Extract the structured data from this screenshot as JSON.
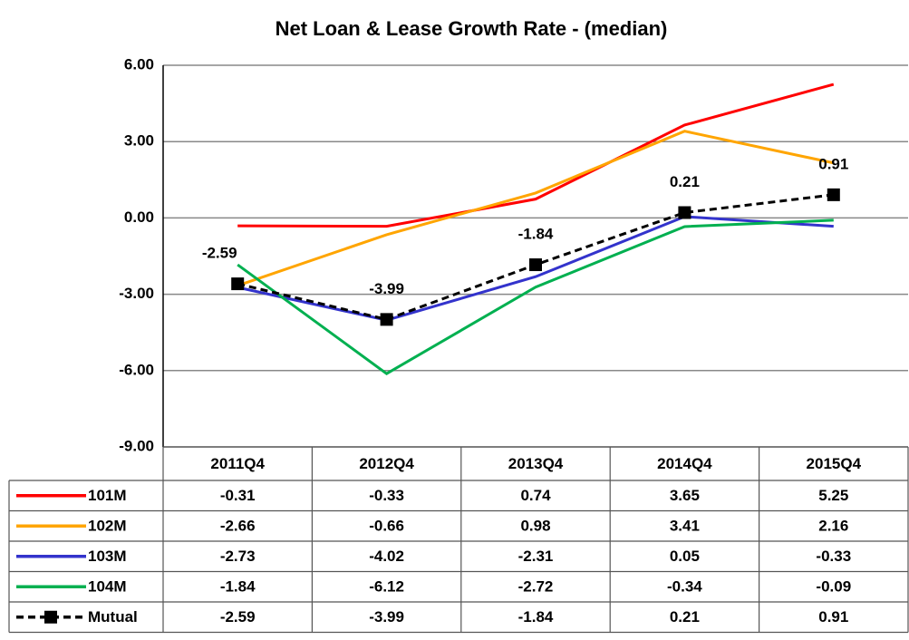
{
  "chart_data": {
    "type": "line",
    "title": "Net Loan & Lease Growth Rate - (median)",
    "categories": [
      "2011Q4",
      "2012Q4",
      "2013Q4",
      "2014Q4",
      "2015Q4"
    ],
    "series": [
      {
        "name": "101M",
        "color": "#ff0000",
        "values": [
          -0.31,
          -0.33,
          0.74,
          3.65,
          5.25
        ]
      },
      {
        "name": "102M",
        "color": "#ffa500",
        "values": [
          -2.66,
          -0.66,
          0.98,
          3.41,
          2.16
        ]
      },
      {
        "name": "103M",
        "color": "#3333cc",
        "values": [
          -2.73,
          -4.02,
          -2.31,
          0.05,
          -0.33
        ]
      },
      {
        "name": "104M",
        "color": "#00b050",
        "values": [
          -1.84,
          -6.12,
          -2.72,
          -0.34,
          -0.09
        ]
      },
      {
        "name": "Mutual",
        "color": "#000000",
        "values": [
          -2.59,
          -3.99,
          -1.84,
          0.21,
          0.91
        ],
        "dashed": true,
        "marker": "square",
        "data_labels": true
      }
    ],
    "ylim": [
      -9,
      6
    ],
    "yticks": [
      {
        "value": -9,
        "label": "-9.00"
      },
      {
        "value": -6,
        "label": "-6.00"
      },
      {
        "value": -3,
        "label": "-3.00"
      },
      {
        "value": 0,
        "label": "0.00"
      },
      {
        "value": 3,
        "label": "3.00"
      },
      {
        "value": 6,
        "label": "6.00"
      }
    ],
    "grid": true,
    "data_table": true
  }
}
